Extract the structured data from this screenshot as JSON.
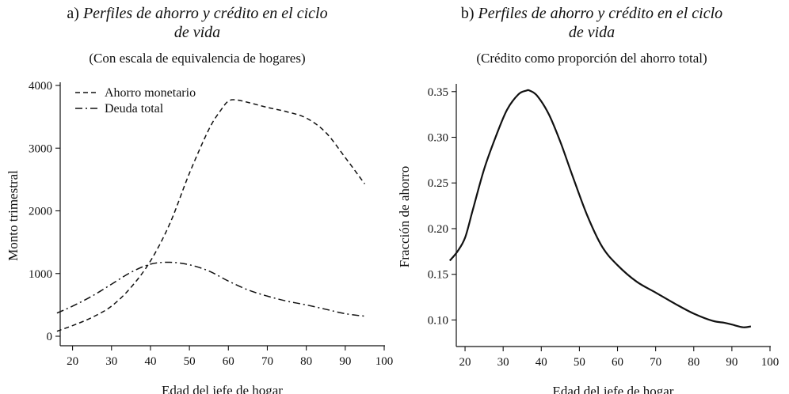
{
  "chart_data": [
    {
      "type": "line",
      "title_prefix": "a)",
      "title_italic": "Perfiles de ahorro y crédito en el ciclo",
      "title_italic_2": "de vida",
      "subtitle": "(Con escala de equivalencia de hogares)",
      "xlabel": "Edad del jefe de hogar",
      "ylabel": "Monto trimestral",
      "xlim": [
        15,
        100
      ],
      "ylim": [
        0,
        4000
      ],
      "xticks": [
        20,
        30,
        40,
        50,
        60,
        70,
        80,
        90,
        100
      ],
      "yticks": [
        0,
        1000,
        2000,
        3000,
        4000
      ],
      "ytick_labels": [
        "0",
        "1000",
        "2000",
        "3000",
        "4000"
      ],
      "legend": "top-left",
      "grid": false,
      "series": [
        {
          "name": "Ahorro monetario",
          "style": "dashed",
          "x": [
            16,
            20,
            25,
            30,
            35,
            40,
            45,
            50,
            55,
            58,
            60,
            62,
            65,
            70,
            75,
            80,
            85,
            90,
            95
          ],
          "y": [
            80,
            170,
            300,
            480,
            780,
            1200,
            1800,
            2600,
            3300,
            3600,
            3750,
            3770,
            3730,
            3650,
            3580,
            3480,
            3250,
            2850,
            2430
          ]
        },
        {
          "name": "Deuda total",
          "style": "dash-dot",
          "x": [
            16,
            20,
            25,
            30,
            35,
            40,
            45,
            50,
            55,
            60,
            65,
            70,
            75,
            80,
            85,
            90,
            95
          ],
          "y": [
            370,
            480,
            640,
            830,
            1020,
            1150,
            1180,
            1140,
            1040,
            880,
            740,
            640,
            560,
            500,
            430,
            360,
            320
          ]
        }
      ]
    },
    {
      "type": "line",
      "title_prefix": "b)",
      "title_italic": "Perfiles de ahorro y crédito en el ciclo",
      "title_italic_2": "de vida",
      "subtitle": "(Crédito como proporción del ahorro total)",
      "xlabel": "Edad del jefe de hogar",
      "ylabel": "Fracción de ahorro",
      "xlim": [
        15,
        100
      ],
      "ylim": [
        0.09,
        0.355
      ],
      "xticks": [
        20,
        30,
        40,
        50,
        60,
        70,
        80,
        90,
        100
      ],
      "yticks": [
        0.1,
        0.15,
        0.2,
        0.25,
        0.3,
        0.35
      ],
      "ytick_labels": [
        "0.10",
        "0.15",
        "0.20",
        "0.25",
        "0.30",
        "0.35"
      ],
      "grid": false,
      "series": [
        {
          "style": "solid",
          "x": [
            16,
            18,
            20,
            22,
            25,
            28,
            31,
            34,
            36,
            37,
            39,
            42,
            45,
            48,
            52,
            56,
            60,
            65,
            70,
            75,
            80,
            85,
            88,
            90,
            93,
            95
          ],
          "y": [
            0.165,
            0.175,
            0.19,
            0.22,
            0.265,
            0.3,
            0.33,
            0.347,
            0.351,
            0.351,
            0.345,
            0.325,
            0.295,
            0.26,
            0.215,
            0.18,
            0.16,
            0.142,
            0.13,
            0.118,
            0.107,
            0.099,
            0.097,
            0.095,
            0.092,
            0.093
          ]
        }
      ]
    }
  ]
}
